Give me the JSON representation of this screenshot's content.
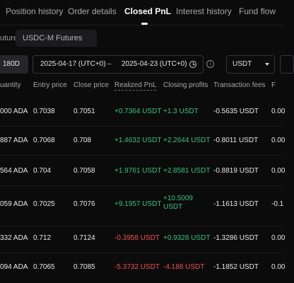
{
  "tabs": [
    {
      "label": "Position history"
    },
    {
      "label": "Order details"
    },
    {
      "label": "Closed PnL",
      "active": true
    },
    {
      "label": "Interest history"
    },
    {
      "label": "Fund flow"
    }
  ],
  "subtabs": {
    "futures": "utures",
    "usdc": "USDC-M Futures"
  },
  "filters": {
    "days": "180D",
    "start_date": "2025-04-17 (UTC+0)",
    "separator": "–",
    "end_date": "2025-04-23 (UTC+0)",
    "info_symbol": "i",
    "currency": "USDT"
  },
  "table": {
    "headers": {
      "quantity": "uantity",
      "entry_price": "Entry price",
      "close_price": "Close price",
      "realized_pnl": "Realized PnL",
      "closing_profits": "Closing profits",
      "transaction_fees": "Transaction fees",
      "extra": "F"
    },
    "rows": [
      {
        "quantity": "000 ADA",
        "entry": "0.7038",
        "close": "0.7051",
        "pnl": "+0.7364 USDT",
        "profit": "+1.3 USDT",
        "fees": "-0.5635 USDT",
        "extra": "0.00"
      },
      {
        "quantity": "887 ADA",
        "entry": "0.7068",
        "close": "0.708",
        "pnl": "+1.4632 USDT",
        "profit": "+2.2644 USDT",
        "fees": "-0.8011 USDT",
        "extra": "0.00"
      },
      {
        "quantity": "564 ADA",
        "entry": "0.704",
        "close": "0.7058",
        "pnl": "+1.9761 USDT",
        "profit": "+2.8581 USDT",
        "fees": "-0.8819 USDT",
        "extra": "0.00"
      },
      {
        "quantity": "059 ADA",
        "entry": "0.7025",
        "close": "0.7076",
        "pnl": "+9.1957 USDT",
        "profit": "+10.5009 USDT",
        "fees": "-1.1613 USDT",
        "extra": "-0.1"
      },
      {
        "quantity": "332 ADA",
        "entry": "0.712",
        "close": "0.7124",
        "pnl": "-0.3958 USDT",
        "profit": "+0.9328 USDT",
        "fees": "-1.3286 USDT",
        "extra": "0.00"
      },
      {
        "quantity": "094 ADA",
        "entry": "0.7065",
        "close": "0.7085",
        "pnl": "-5.3732 USDT",
        "profit": "-4.188 USDT",
        "fees": "-1.1852 USDT",
        "extra": "0.00"
      }
    ]
  },
  "colors": {
    "positive": "#35c47c",
    "negative": "#f0504f",
    "background": "#0b0b0c"
  }
}
